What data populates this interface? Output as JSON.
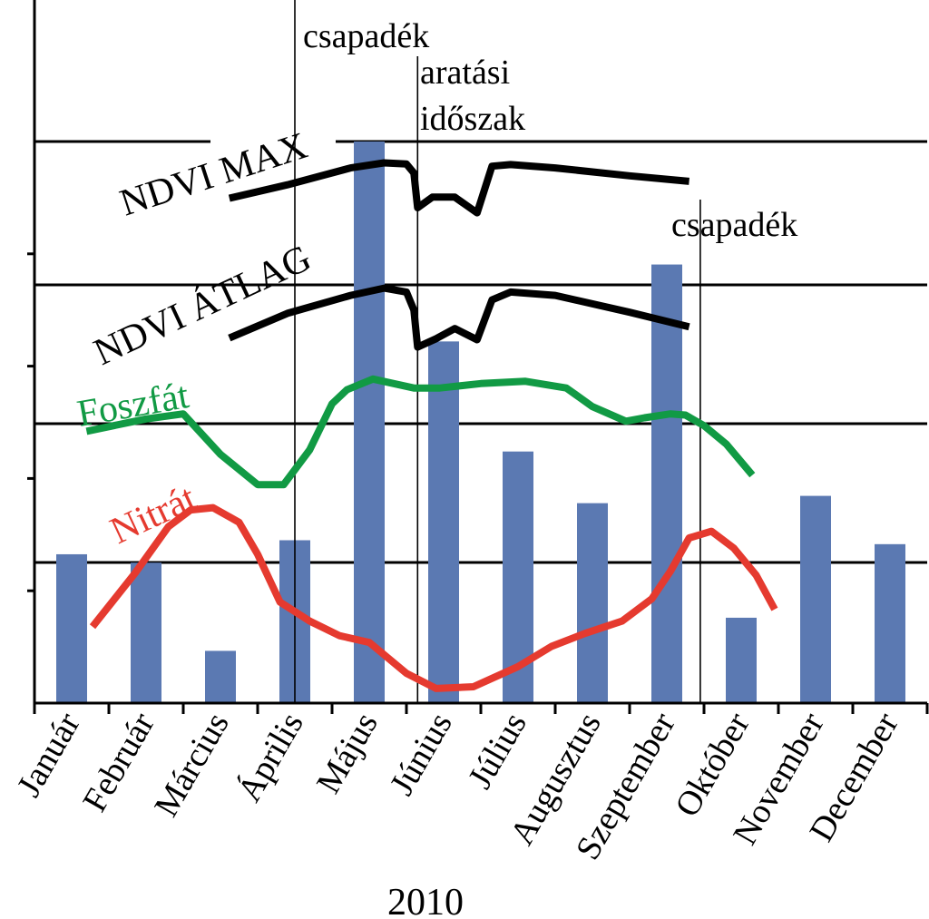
{
  "chart_data": {
    "type": "bar",
    "title": "",
    "xlabel": "2010",
    "ylabel": "",
    "categories": [
      "Január",
      "Február",
      "Március",
      "Április",
      "Május",
      "Június",
      "Július",
      "Augusztus",
      "Szeptember",
      "Október",
      "November",
      "December"
    ],
    "ylim": [
      0,
      100
    ],
    "grid": true,
    "bars": {
      "name": "",
      "color": "#5b79b2",
      "values": [
        26.5,
        25.0,
        9.3,
        29.0,
        100.0,
        64.4,
        44.8,
        35.6,
        78.1,
        15.2,
        36.9,
        28.3
      ]
    },
    "lines": [
      {
        "name": "NDVI MAX",
        "color": "#000000",
        "x": [
          2.62,
          3.4,
          4.25,
          4.7,
          5.0,
          5.1,
          5.15,
          5.35,
          5.65,
          5.95,
          6.15,
          6.4,
          7.0,
          8.0,
          8.8
        ],
        "y": [
          89.9,
          92.3,
          95.3,
          96.2,
          96.0,
          94.4,
          88.2,
          90.1,
          90.1,
          87.3,
          95.6,
          95.9,
          95.3,
          93.9,
          92.9
        ]
      },
      {
        "name": "NDVI ÁTLAG",
        "color": "#000000",
        "x": [
          2.62,
          3.4,
          4.25,
          4.7,
          5.0,
          5.1,
          5.15,
          5.4,
          5.65,
          5.95,
          6.15,
          6.4,
          7.0,
          8.0,
          8.8
        ],
        "y": [
          65.0,
          69.4,
          72.6,
          73.9,
          73.2,
          70.0,
          63.4,
          64.9,
          66.7,
          64.7,
          71.8,
          73.2,
          72.6,
          69.6,
          67.0
        ],
        "fill": false
      },
      {
        "name": "Foszfát",
        "color": "#119a44",
        "x": [
          0.7,
          1.5,
          2.0,
          2.5,
          3.0,
          3.35,
          3.7,
          4.0,
          4.2,
          4.55,
          5.1,
          5.45,
          6.0,
          6.6,
          7.15,
          7.5,
          7.95,
          8.2,
          8.55,
          8.75,
          9.0,
          9.3,
          9.65
        ],
        "y": [
          48.4,
          50.6,
          51.5,
          44.3,
          38.9,
          38.9,
          45.1,
          53.3,
          55.8,
          57.7,
          56.1,
          56.1,
          56.9,
          57.3,
          56.1,
          52.8,
          50.2,
          50.8,
          51.5,
          51.3,
          49.4,
          46.1,
          40.6
        ]
      },
      {
        "name": "Nitrát",
        "color": "#e53a2f",
        "x": [
          0.78,
          1.35,
          1.8,
          2.1,
          2.4,
          2.75,
          3.0,
          3.3,
          3.7,
          4.1,
          4.5,
          5.0,
          5.4,
          5.9,
          6.5,
          6.95,
          7.4,
          7.9,
          8.3,
          8.55,
          8.8,
          9.1,
          9.4,
          9.7,
          9.95
        ],
        "y": [
          13.6,
          23.1,
          31.4,
          34.4,
          34.8,
          32.2,
          26.5,
          18.0,
          14.6,
          12.0,
          10.8,
          5.3,
          2.6,
          2.9,
          6.5,
          10.1,
          12.4,
          14.6,
          18.6,
          23.5,
          29.4,
          30.6,
          27.6,
          22.8,
          16.7
        ]
      }
    ],
    "series_labels": {
      "ndvi_max": "NDVI MAX",
      "ndvi_atlag": "NDVI ÁTLAG",
      "foszfat": "Foszfát",
      "nitrat": "Nitrát"
    },
    "annotations": [
      {
        "text": "csapadék",
        "x": 3.5
      },
      {
        "text": "aratási",
        "x": 5.15
      },
      {
        "text": "időszak",
        "x": 5.15
      },
      {
        "text": "csapadék",
        "x": 8.95
      }
    ]
  }
}
